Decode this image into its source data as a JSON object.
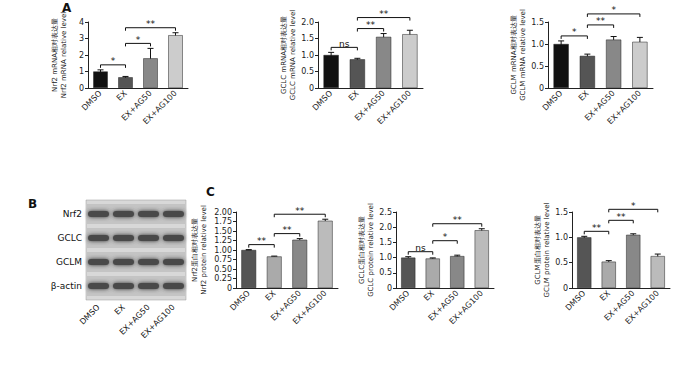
{
  "chart_data": [
    {
      "type": "bar",
      "ylabel": [
        "Nrf2 mRNA相对表达量",
        "Nrf2 mRNA relative level"
      ],
      "categories": [
        "DMSO",
        "EX",
        "EX+AG50",
        "EX+AG100"
      ],
      "values": [
        1.0,
        0.65,
        1.8,
        3.2
      ],
      "errors": [
        0.1,
        0.05,
        0.6,
        0.15
      ],
      "colors": [
        "#111111",
        "#555555",
        "#888888",
        "#cccccc"
      ],
      "ylim": [
        0,
        4
      ],
      "yticks": [
        0,
        1,
        2,
        3,
        4
      ],
      "grid": false,
      "significance": [
        {
          "from": "DMSO",
          "to": "EX",
          "label": "*"
        },
        {
          "from": "EX",
          "to": "EX+AG50",
          "label": "*"
        },
        {
          "from": "EX",
          "to": "EX+AG100",
          "label": "**"
        }
      ]
    },
    {
      "type": "bar",
      "ylabel": [
        "GCLC mRNA相对表达量",
        "GCLC mRNA relative level"
      ],
      "categories": [
        "DMSO",
        "EX",
        "EX+AG50",
        "EX+AG100"
      ],
      "values": [
        1.0,
        0.87,
        1.55,
        1.63
      ],
      "errors": [
        0.08,
        0.03,
        0.1,
        0.12
      ],
      "colors": [
        "#111111",
        "#555555",
        "#888888",
        "#cccccc"
      ],
      "ylim": [
        0,
        2
      ],
      "yticks": [
        0,
        0.5,
        {
          "value": 1,
          "label": "1.0"
        },
        1.5,
        {
          "value": 2,
          "label": "2.0"
        }
      ],
      "grid": false,
      "significance": [
        {
          "from": "DMSO",
          "to": "EX",
          "label": "ns"
        },
        {
          "from": "EX",
          "to": "EX+AG50",
          "label": "**"
        },
        {
          "from": "EX",
          "to": "EX+AG100",
          "label": "**"
        }
      ]
    },
    {
      "type": "bar",
      "ylabel": [
        "GCLM mRNA相对表达量",
        "GCLM mRNA relative level"
      ],
      "categories": [
        "DMSO",
        "EX",
        "EX+AG50",
        "EX+AG100"
      ],
      "values": [
        1.0,
        0.73,
        1.1,
        1.05
      ],
      "errors": [
        0.07,
        0.04,
        0.07,
        0.1
      ],
      "colors": [
        "#111111",
        "#555555",
        "#888888",
        "#cccccc"
      ],
      "ylim": [
        0,
        1.5
      ],
      "yticks": [
        0,
        0.5,
        {
          "value": 1,
          "label": "1.0"
        },
        1.5
      ],
      "grid": false,
      "significance": [
        {
          "from": "DMSO",
          "to": "EX",
          "label": "*"
        },
        {
          "from": "EX",
          "to": "EX+AG50",
          "label": "**"
        },
        {
          "from": "EX",
          "to": "EX+AG100",
          "label": "*"
        }
      ]
    },
    {
      "type": "bar",
      "ylabel": [
        "Nrf2蛋白相对表达量",
        "Nrf2 protein relative level"
      ],
      "categories": [
        "DMSO",
        "EX",
        "EX+AG50",
        "EX+AG100"
      ],
      "values": [
        1.0,
        0.83,
        1.27,
        1.77
      ],
      "errors": [
        0.01,
        0.01,
        0.03,
        0.04
      ],
      "colors": [
        "#555555",
        "#aaaaaa",
        "#888888",
        "#bbbbbb"
      ],
      "ylim": [
        0,
        2
      ],
      "yticks": [
        0,
        0.25,
        {
          "value": 0.5,
          "label": "0.50"
        },
        0.75,
        {
          "value": 1,
          "label": "1.00"
        },
        1.25,
        {
          "value": 1.5,
          "label": "1.50"
        },
        1.75,
        {
          "value": 2,
          "label": "2.00"
        }
      ],
      "grid": false,
      "significance": [
        {
          "from": "DMSO",
          "to": "EX",
          "label": "**"
        },
        {
          "from": "EX",
          "to": "EX+AG50",
          "label": "**"
        },
        {
          "from": "EX",
          "to": "EX+AG100",
          "label": "**"
        }
      ]
    },
    {
      "type": "bar",
      "ylabel": [
        "GCLC蛋白相对表达量",
        "GCLC protein relative level"
      ],
      "categories": [
        "DMSO",
        "EX",
        "EX+AG50",
        "EX+AG100"
      ],
      "values": [
        1.0,
        0.97,
        1.05,
        1.9
      ],
      "errors": [
        0.03,
        0.02,
        0.03,
        0.05
      ],
      "colors": [
        "#555555",
        "#aaaaaa",
        "#888888",
        "#bbbbbb"
      ],
      "ylim": [
        0,
        2.5
      ],
      "yticks": [
        0,
        0.5,
        {
          "value": 1,
          "label": "1.0"
        },
        1.5,
        {
          "value": 2,
          "label": "2.0"
        },
        2.5
      ],
      "grid": false,
      "significance": [
        {
          "from": "DMSO",
          "to": "EX",
          "label": "ns"
        },
        {
          "from": "EX",
          "to": "EX+AG50",
          "label": "*"
        },
        {
          "from": "EX",
          "to": "EX+AG100",
          "label": "**"
        }
      ]
    },
    {
      "type": "bar",
      "ylabel": [
        "GCLM蛋白相对表达量",
        "GCLM protein relative level"
      ],
      "categories": [
        "DMSO",
        "EX",
        "EX+AG50",
        "EX+AG100"
      ],
      "values": [
        1.0,
        0.52,
        1.05,
        0.63
      ],
      "errors": [
        0.02,
        0.02,
        0.02,
        0.04
      ],
      "colors": [
        "#555555",
        "#aaaaaa",
        "#888888",
        "#bbbbbb"
      ],
      "ylim": [
        0,
        1.5
      ],
      "yticks": [
        0,
        0.5,
        {
          "value": 1,
          "label": "1.0"
        },
        1.5
      ],
      "grid": false,
      "significance": [
        {
          "from": "DMSO",
          "to": "EX",
          "label": "**"
        },
        {
          "from": "EX",
          "to": "EX+AG50",
          "label": "**"
        },
        {
          "from": "EX",
          "to": "EX+AG100",
          "label": "*"
        }
      ]
    }
  ],
  "panel_labels": [
    "A",
    "B",
    "C"
  ],
  "blot": {
    "rows": [
      "Nrf2",
      "GCLC",
      "GCLM",
      "β-actin"
    ],
    "lanes": [
      "DMSO",
      "EX",
      "EX+AG50",
      "EX+AG100"
    ]
  }
}
